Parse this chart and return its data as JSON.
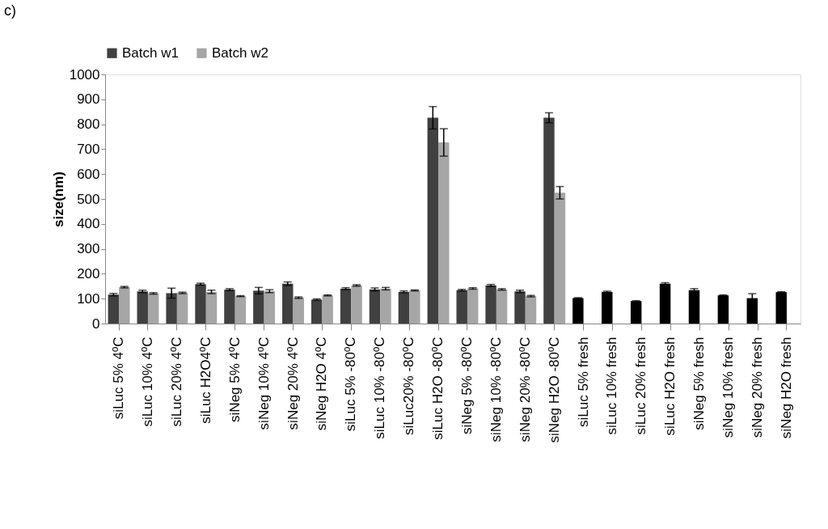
{
  "chart_data": {
    "type": "bar",
    "ylabel": "size(nm)",
    "categories": [
      "siLuc 5% 4ºC",
      "siLuc 10% 4ºC",
      "siLuc 20% 4ºC",
      "siLuc H2O4ºC",
      "siNeg 5% 4ºC",
      "siNeg 10% 4ºC",
      "siNeg 20% 4ºC",
      "siNeg H2O 4ºC",
      "siLuc 5% -80ºC",
      "siLuc 10% -80ºC",
      "siLuc20% -80ºC",
      "siLuc H2O -80ºC",
      "siNeg 5% -80ºC",
      "siNeg 10% -80ºC",
      "siNeg 20% -80ºC",
      "siNeg H2O -80ºC",
      "siLuc 5% fresh",
      "siLuc 10% fresh",
      "siLuc 20% fresh",
      "siLuc H2O fresh",
      "siNeg 5% fresh",
      "siNeg 10% fresh",
      "siNeg 20% fresh",
      "siNeg H2O fresh"
    ],
    "series": [
      {
        "name": "Batch w1",
        "color": "#404040",
        "values": [
          116,
          129,
          122,
          158,
          136,
          132,
          160,
          96,
          140,
          137,
          127,
          826,
          134,
          153,
          129,
          826,
          102,
          127,
          90,
          160,
          134,
          113,
          102,
          126
        ],
        "colors": [
          "#404040",
          "#404040",
          "#404040",
          "#404040",
          "#404040",
          "#404040",
          "#404040",
          "#404040",
          "#404040",
          "#404040",
          "#404040",
          "#404040",
          "#404040",
          "#404040",
          "#404040",
          "#404040",
          "#000000",
          "#000000",
          "#000000",
          "#000000",
          "#000000",
          "#000000",
          "#000000",
          "#000000"
        ],
        "errors": [
          5,
          5,
          20,
          4,
          4,
          13,
          7,
          3,
          4,
          6,
          4,
          45,
          3,
          4,
          5,
          20,
          2,
          3,
          2,
          4,
          6,
          2,
          18,
          2
        ]
      },
      {
        "name": "Batch w2",
        "color": "#a6a6a6",
        "values": [
          146,
          121,
          123,
          127,
          110,
          130,
          104,
          113,
          153,
          140,
          133,
          727,
          141,
          137,
          110,
          525,
          null,
          null,
          null,
          null,
          null,
          null,
          null,
          null
        ],
        "errors": [
          3,
          3,
          3,
          7,
          2,
          6,
          3,
          2,
          3,
          5,
          2,
          55,
          3,
          3,
          3,
          25,
          null,
          null,
          null,
          null,
          null,
          null,
          null,
          null
        ]
      }
    ],
    "ylim": [
      0,
      1000
    ],
    "yticks": [
      0,
      100,
      200,
      300,
      400,
      500,
      600,
      700,
      800,
      900,
      1000
    ],
    "grid": false,
    "legend": "top",
    "annotations": [
      "c)"
    ]
  }
}
